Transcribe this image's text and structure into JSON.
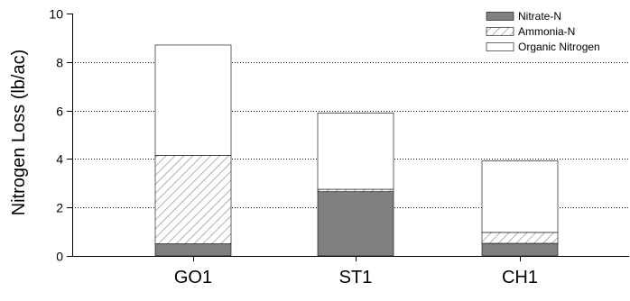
{
  "chart_data": {
    "type": "bar",
    "stacked": true,
    "categories": [
      "GO1",
      "ST1",
      "CH1"
    ],
    "series": [
      {
        "name": "Nitrate-N",
        "values": [
          0.5,
          2.65,
          0.52
        ],
        "color": "#808080",
        "fill": "solid"
      },
      {
        "name": "Ammonia-N",
        "values": [
          3.65,
          0.1,
          0.45
        ],
        "color": "#808080",
        "fill": "hatch"
      },
      {
        "name": "Organic Nitrogen",
        "values": [
          4.55,
          3.15,
          2.95
        ],
        "color": "#ffffff",
        "fill": "empty"
      }
    ],
    "ylabel": "Nitrogen Loss (lb/ac)",
    "xlabel": "",
    "title": "",
    "ylim": [
      0,
      10
    ],
    "yticks": [
      0,
      2,
      4,
      6,
      8,
      10
    ],
    "grid": "horizontal-dotted",
    "legend_position": "top-right"
  }
}
